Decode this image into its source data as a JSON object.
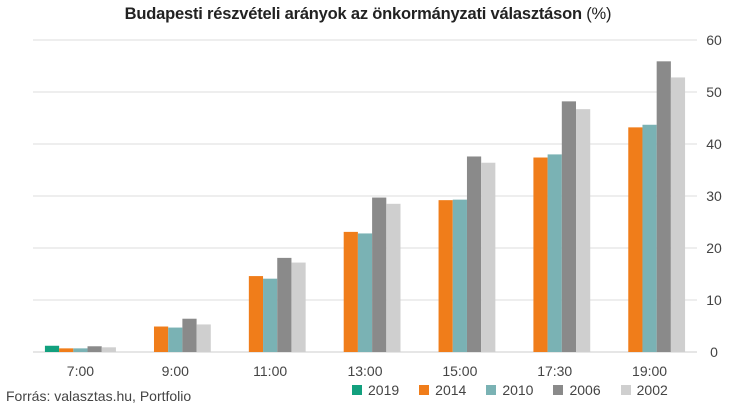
{
  "title": "Budapesti részvételi arányok az önkormányzati választáson",
  "title_unit": "(%)",
  "source": "Forrás: valasztas.hu, Portfolio",
  "colors": {
    "2019": "#12a07e",
    "2014": "#f07d1a",
    "2010": "#7ab2b4",
    "2006": "#8a8a8a",
    "2002": "#cfcfcf",
    "grid": "#dddddd",
    "axis": "#cccccc",
    "tick_text": "#444444"
  },
  "chart_data": {
    "type": "bar",
    "title": "Budapesti részvételi arányok az önkormányzati választáson (%)",
    "xlabel": "",
    "ylabel": "",
    "ylim": [
      0,
      60
    ],
    "yticks": [
      0,
      10,
      20,
      30,
      40,
      50,
      60
    ],
    "y_axis_position": "right",
    "grid": true,
    "legend_position": "bottom-right",
    "categories": [
      "7:00",
      "9:00",
      "11:00",
      "13:00",
      "15:00",
      "17:30",
      "19:00"
    ],
    "series": [
      {
        "name": "2019",
        "values": [
          1.2,
          null,
          null,
          null,
          null,
          null,
          null
        ]
      },
      {
        "name": "2014",
        "values": [
          0.7,
          4.9,
          14.6,
          23.1,
          29.2,
          37.4,
          43.2
        ]
      },
      {
        "name": "2010",
        "values": [
          0.7,
          4.7,
          14.1,
          22.8,
          29.3,
          38.0,
          43.7
        ]
      },
      {
        "name": "2006",
        "values": [
          1.1,
          6.4,
          18.1,
          29.7,
          37.6,
          48.2,
          55.9
        ]
      },
      {
        "name": "2002",
        "values": [
          0.9,
          5.3,
          17.2,
          28.5,
          36.4,
          46.7,
          52.8
        ]
      }
    ]
  }
}
